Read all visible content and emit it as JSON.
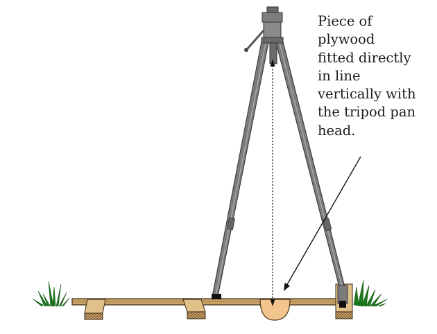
{
  "annotation": {
    "lines": [
      "Piece of",
      "plywood",
      "fitted directly",
      "in line",
      "vertically with",
      "the tripod pan",
      "head."
    ]
  },
  "colors": {
    "tripod_leg": "#7b7b7b",
    "tripod_head": "#7d7d7d",
    "plank": "#c9a167",
    "plywood": "#f2c48e",
    "wood_block": "#efd3a0",
    "grass": "#1d7a1d"
  },
  "icons": [
    "camera-head-icon",
    "grass-tuft-icon"
  ]
}
